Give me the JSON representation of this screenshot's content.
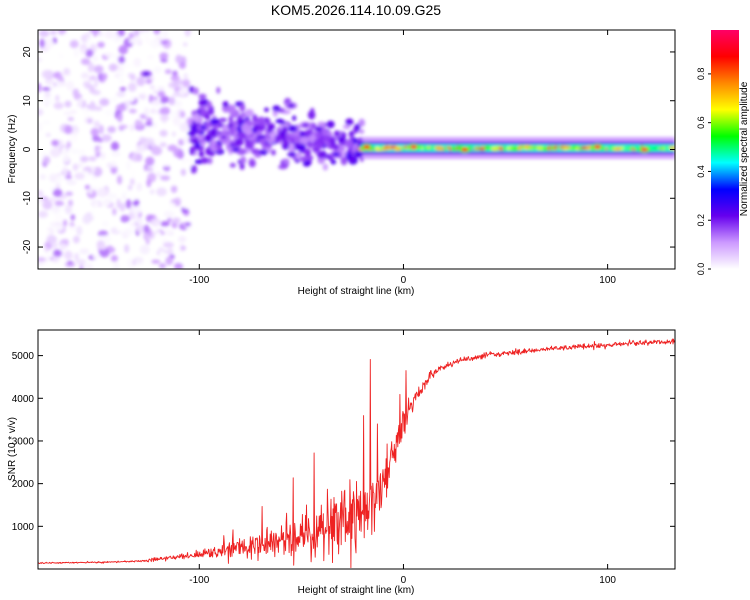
{
  "figure": {
    "title": "KOM5.2026.114.10.09.G25"
  },
  "chart_data": [
    {
      "type": "heatmap",
      "title": "KOM5.2026.114.10.09.G25",
      "xlabel": "Height of straight line (km)",
      "ylabel": "Frequency (Hz)",
      "xlim": [
        -179,
        133
      ],
      "ylim": [
        -24.5,
        24.5
      ],
      "x_ticks": [
        -100,
        0,
        100
      ],
      "x_tick_labels": [
        "-100",
        "0",
        "100"
      ],
      "y_ticks": [
        -20,
        -10,
        0,
        10,
        20
      ],
      "y_tick_labels": [
        "-20",
        "-10",
        "0",
        "10",
        "20"
      ],
      "colorbar": {
        "label": "Normalized spectral amplitude",
        "range": [
          0,
          0.98
        ],
        "ticks": [
          0,
          0.2,
          0.4,
          0.6,
          0.8
        ],
        "tick_labels": [
          "0.0",
          "0.2",
          "0.4",
          "0.6",
          "0.8"
        ],
        "colormap": [
          "#ffffff",
          "#cc99ff",
          "#6600ee",
          "#0000ff",
          "#00ffff",
          "#00ff00",
          "#ffff00",
          "#ff8800",
          "#ff0000",
          "#ff0066"
        ]
      },
      "regions": [
        {
          "name": "scattered noise",
          "x_range": [
            -179,
            -105
          ],
          "freq_range": [
            -24.5,
            24.5
          ],
          "amplitude_range": [
            0.0,
            0.15
          ]
        },
        {
          "name": "diffuse cloud",
          "x_range": [
            -105,
            -20
          ],
          "freq_range": [
            -9,
            13
          ],
          "amplitude_range": [
            0.1,
            0.25
          ]
        },
        {
          "name": "narrow carrier band",
          "x_range": [
            -20,
            133
          ],
          "freq_center": 0.3,
          "freq_width": 1.5,
          "amplitude_range": [
            0.45,
            0.95
          ]
        }
      ],
      "hotspots": [
        {
          "x": -126,
          "freq": 15.5,
          "amplitude": 0.22
        },
        {
          "x": -98,
          "freq": 4.5,
          "amplitude": 0.25
        },
        {
          "x": -88,
          "freq": 2.5,
          "amplitude": 0.2
        },
        {
          "x": -82,
          "freq": 0.0,
          "amplitude": 0.25
        },
        {
          "x": -55,
          "freq": 9.0,
          "amplitude": 0.22
        },
        {
          "x": -48,
          "freq": 5.0,
          "amplitude": 0.2
        },
        {
          "x": -33,
          "freq": -1.0,
          "amplitude": 0.25
        },
        {
          "x": -18,
          "freq": 0.5,
          "amplitude": 0.9
        },
        {
          "x": 5,
          "freq": 0.5,
          "amplitude": 0.95
        },
        {
          "x": 30,
          "freq": 0.0,
          "amplitude": 0.9
        },
        {
          "x": 95,
          "freq": 0.5,
          "amplitude": 0.95
        },
        {
          "x": 118,
          "freq": 0.0,
          "amplitude": 0.95
        }
      ]
    },
    {
      "type": "line",
      "xlabel": "Height of straight line (km)",
      "ylabel": "SNR (10 * v/v)",
      "xlim": [
        -179,
        133
      ],
      "ylim": [
        0,
        5600
      ],
      "x_ticks": [
        -100,
        0,
        100
      ],
      "x_tick_labels": [
        "-100",
        "0",
        "100"
      ],
      "y_ticks": [
        1000,
        2000,
        3000,
        4000,
        5000
      ],
      "y_tick_labels": [
        "1000",
        "2000",
        "3000",
        "4000",
        "5000"
      ],
      "series": [
        {
          "name": "SNR",
          "color": "#ee2222",
          "x": [
            -179,
            -160,
            -140,
            -125,
            -115,
            -100,
            -90,
            -80,
            -70,
            -60,
            -50,
            -40,
            -30,
            -22,
            -20,
            -18,
            -16,
            -14,
            -12,
            -10,
            -8,
            -6,
            -4,
            -2,
            0,
            2,
            4,
            6,
            8,
            10,
            12,
            14,
            16,
            18,
            20,
            25,
            30,
            40,
            50,
            60,
            70,
            80,
            90,
            100,
            110,
            120,
            133
          ],
          "y": [
            140,
            150,
            165,
            200,
            260,
            340,
            420,
            520,
            620,
            720,
            830,
            960,
            1100,
            1250,
            1330,
            1420,
            1540,
            1700,
            1900,
            2130,
            2380,
            2650,
            2900,
            3160,
            3400,
            3620,
            3820,
            4010,
            4180,
            4320,
            4450,
            4550,
            4640,
            4700,
            4750,
            4830,
            4900,
            5000,
            5060,
            5100,
            5150,
            5190,
            5220,
            5250,
            5280,
            5310,
            5330
          ],
          "noise": [
            25,
            25,
            30,
            60,
            100,
            180,
            300,
            420,
            560,
            720,
            950,
            1250,
            1500,
            1650,
            1700,
            1750,
            1700,
            1600,
            1450,
            1300,
            1150,
            1000,
            850,
            720,
            600,
            500,
            420,
            350,
            290,
            240,
            200,
            170,
            150,
            140,
            130,
            120,
            115,
            110,
            110,
            110,
            110,
            110,
            110,
            110,
            110,
            110,
            110
          ]
        }
      ]
    }
  ]
}
